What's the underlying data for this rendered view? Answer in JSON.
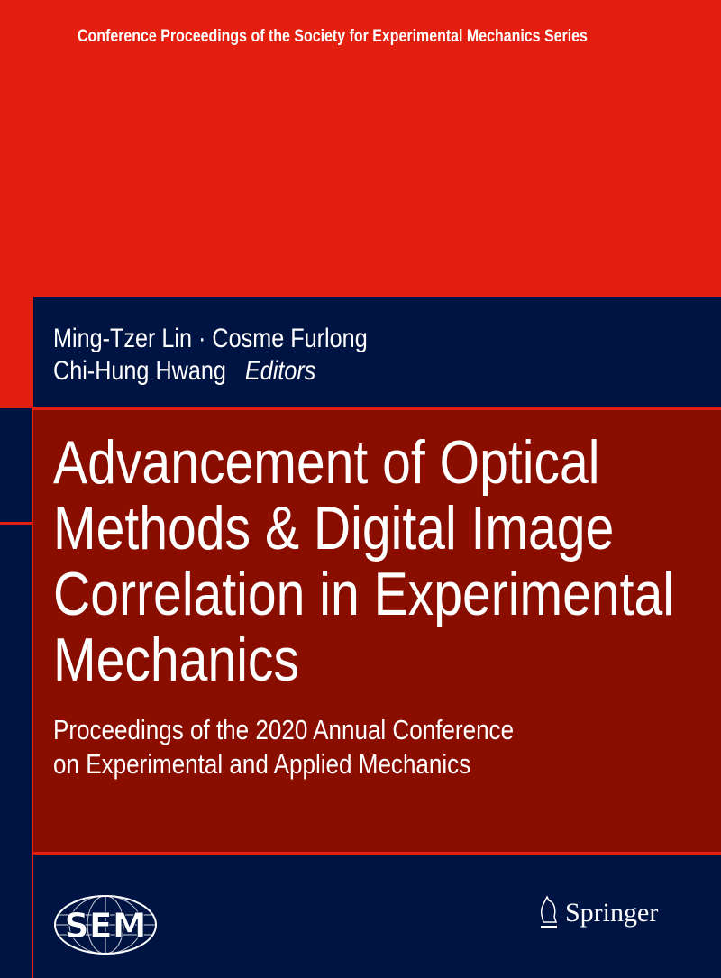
{
  "series": "Conference Proceedings of the Society for Experimental Mechanics Series",
  "authors": {
    "line1": "Ming-Tzer Lin · Cosme Furlong",
    "line2": "Chi-Hung Hwang",
    "role": "Editors"
  },
  "title": [
    "Advancement of Optical",
    "Methods & Digital Image",
    "Correlation in Experimental",
    "Mechanics"
  ],
  "subtitle": [
    "Proceedings of the 2020 Annual Conference",
    "on Experimental and Applied Mechanics"
  ],
  "logos": {
    "sem": "SEM",
    "publisher": "Springer"
  },
  "colors": {
    "red": "#e3200f",
    "navy": "#001443",
    "maroon": "#8a0e00"
  }
}
